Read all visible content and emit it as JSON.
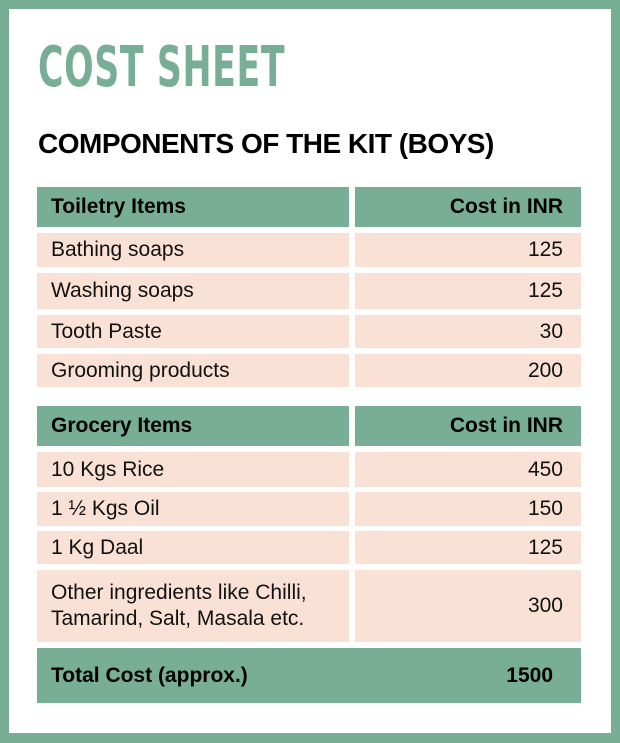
{
  "title": "COST SHEET",
  "subtitle": "COMPONENTS OF THE KIT (BOYS)",
  "toiletry": {
    "header": [
      "Toiletry Items",
      "Cost in INR"
    ],
    "rows": [
      [
        "Bathing soaps",
        "125"
      ],
      [
        "Washing soaps",
        "125"
      ],
      [
        "Tooth Paste",
        "30"
      ],
      [
        "Grooming products",
        "200"
      ]
    ]
  },
  "grocery": {
    "header": [
      "Grocery Items",
      "Cost in INR"
    ],
    "rows": [
      [
        "10 Kgs Rice",
        "450"
      ],
      [
        "1 ½ Kgs Oil",
        "150"
      ],
      [
        "1 Kg Daal",
        "125"
      ],
      [
        "Other ingredients like Chilli, Tamarind, Salt, Masala etc.",
        "300"
      ]
    ]
  },
  "total": {
    "label": "Total Cost (approx.)",
    "value": "1500"
  }
}
